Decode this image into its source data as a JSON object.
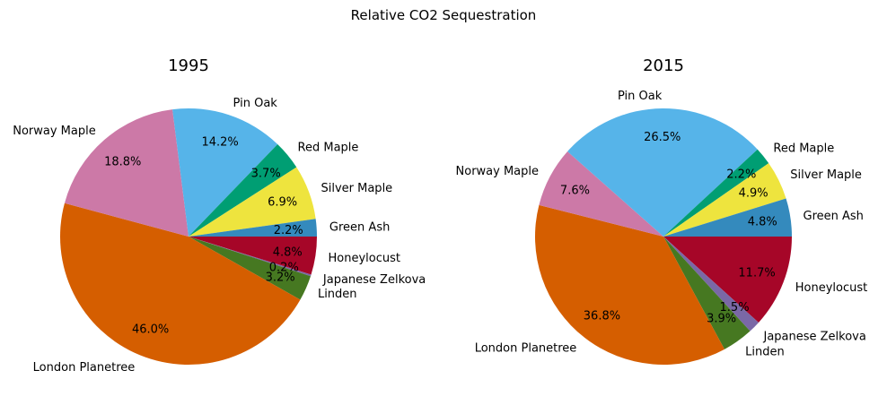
{
  "figure_title": "Relative CO2 Sequestration",
  "chart_data": [
    {
      "type": "pie",
      "title": "1995",
      "slices": [
        {
          "label": "Green Ash",
          "value": 2.2,
          "pct_label": "2.2%",
          "color": "#348abd"
        },
        {
          "label": "Silver Maple",
          "value": 6.9,
          "pct_label": "6.9%",
          "color": "#eee43e"
        },
        {
          "label": "Red Maple",
          "value": 3.7,
          "pct_label": "3.7%",
          "color": "#009e73"
        },
        {
          "label": "Pin Oak",
          "value": 14.2,
          "pct_label": "14.2%",
          "color": "#56b4e9"
        },
        {
          "label": "Norway Maple",
          "value": 18.8,
          "pct_label": "18.8%",
          "color": "#cc79a7"
        },
        {
          "label": "London Planetree",
          "value": 46.0,
          "pct_label": "46.0%",
          "color": "#d55e00"
        },
        {
          "label": "Linden",
          "value": 3.2,
          "pct_label": "3.2%",
          "color": "#467821"
        },
        {
          "label": "Japanese Zelkova",
          "value": 0.2,
          "pct_label": "0.2%",
          "color": "#7a68a6"
        },
        {
          "label": "Honeylocust",
          "value": 4.8,
          "pct_label": "4.8%",
          "color": "#a60628"
        }
      ]
    },
    {
      "type": "pie",
      "title": "2015",
      "slices": [
        {
          "label": "Green Ash",
          "value": 4.8,
          "pct_label": "4.8%",
          "color": "#348abd"
        },
        {
          "label": "Silver Maple",
          "value": 4.9,
          "pct_label": "4.9%",
          "color": "#eee43e"
        },
        {
          "label": "Red Maple",
          "value": 2.2,
          "pct_label": "2.2%",
          "color": "#009e73"
        },
        {
          "label": "Pin Oak",
          "value": 26.5,
          "pct_label": "26.5%",
          "color": "#56b4e9"
        },
        {
          "label": "Norway Maple",
          "value": 7.6,
          "pct_label": "7.6%",
          "color": "#cc79a7"
        },
        {
          "label": "London Planetree",
          "value": 36.8,
          "pct_label": "36.8%",
          "color": "#d55e00"
        },
        {
          "label": "Linden",
          "value": 3.9,
          "pct_label": "3.9%",
          "color": "#467821"
        },
        {
          "label": "Japanese Zelkova",
          "value": 1.5,
          "pct_label": "1.5%",
          "color": "#7a68a6"
        },
        {
          "label": "Honeylocust",
          "value": 11.7,
          "pct_label": "11.7%",
          "color": "#a60628"
        }
      ]
    }
  ]
}
